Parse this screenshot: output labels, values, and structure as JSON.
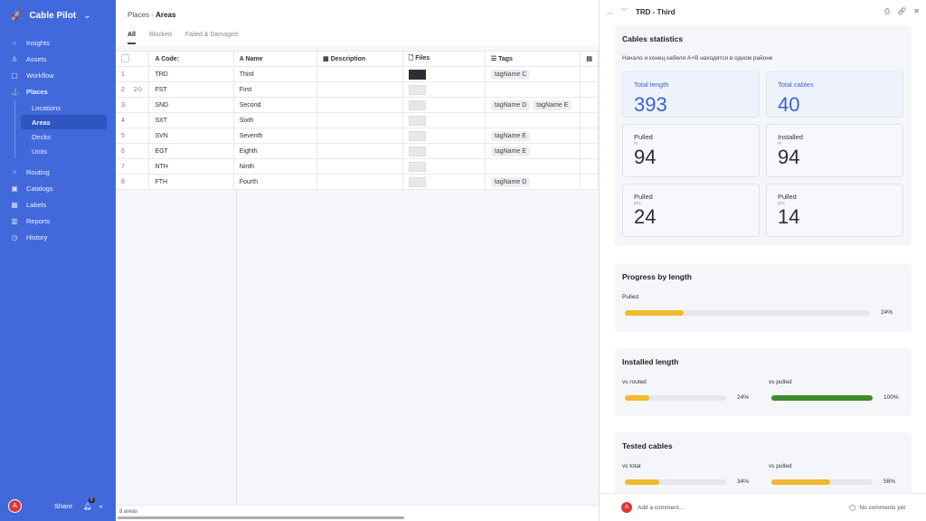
{
  "app": {
    "name": "Cable Pilot"
  },
  "sidebar": {
    "items": [
      {
        "label": "Insights",
        "icon": "lightbulb-icon"
      },
      {
        "label": "Assets",
        "icon": "assets-icon"
      },
      {
        "label": "Workflow",
        "icon": "workflow-icon"
      },
      {
        "label": "Places",
        "icon": "anchor-icon"
      },
      {
        "label": "Routing",
        "icon": "routing-icon"
      },
      {
        "label": "Catalogs",
        "icon": "catalog-icon"
      },
      {
        "label": "Labels",
        "icon": "labels-icon"
      },
      {
        "label": "Reports",
        "icon": "reports-icon"
      },
      {
        "label": "History",
        "icon": "history-icon"
      }
    ],
    "sub": [
      "Locations",
      "Areas",
      "Decks",
      "Units"
    ],
    "avatar": "A",
    "share": "Share",
    "notif_count": "6"
  },
  "breadcrumb": {
    "parent": "Places",
    "current": "Areas"
  },
  "tabs": [
    "All",
    "Blocked",
    "Failed & Damaged"
  ],
  "table": {
    "headers": [
      "Code:",
      "Name",
      "Description",
      "Files",
      "Tags"
    ],
    "rows": [
      {
        "n": "1",
        "badge": "",
        "code": "TRD",
        "name": "Third",
        "tags": [
          "tagName C"
        ],
        "file": "dark"
      },
      {
        "n": "2",
        "badge": "2",
        "code": "FST",
        "name": "First",
        "tags": [],
        "file": "light"
      },
      {
        "n": "3",
        "badge": "",
        "code": "SND",
        "name": "Second",
        "tags": [
          "tagName D",
          "tagName E"
        ],
        "file": "light"
      },
      {
        "n": "4",
        "badge": "",
        "code": "SXT",
        "name": "Sixth",
        "tags": [],
        "file": "light"
      },
      {
        "n": "5",
        "badge": "",
        "code": "SVN",
        "name": "Seventh",
        "tags": [
          "tagName E"
        ],
        "file": "light"
      },
      {
        "n": "6",
        "badge": "",
        "code": "EGT",
        "name": "Eighth",
        "tags": [
          "tagName E"
        ],
        "file": "light"
      },
      {
        "n": "7",
        "badge": "",
        "code": "NTH",
        "name": "Ninth",
        "tags": [],
        "file": "light"
      },
      {
        "n": "8",
        "badge": "",
        "code": "FTH",
        "name": "Fourth",
        "tags": [
          "tagName D"
        ],
        "file": "light"
      }
    ],
    "footer": "8 areas"
  },
  "panel": {
    "title": "TRD - Third",
    "stats": {
      "title": "Cables statistics",
      "note": "Начало и конец кабеля A+B находятся в одном районе",
      "cards": [
        {
          "label": "Total length",
          "unit": "",
          "value": "393"
        },
        {
          "label": "Total cables",
          "unit": "",
          "value": "40"
        },
        {
          "label": "Pulled",
          "unit": "m",
          "value": "94"
        },
        {
          "label": "Installed",
          "unit": "m",
          "value": "94"
        },
        {
          "label": "Pulled",
          "unit": "pcs",
          "value": "24"
        },
        {
          "label": "Pulled",
          "unit": "pcs",
          "value": "14"
        }
      ]
    },
    "progress": {
      "title": "Progress by length",
      "label": "Pulled",
      "pct": "24%",
      "value": 24,
      "color": "#f0b92e"
    },
    "installed": {
      "title": "Installed length",
      "bars": [
        {
          "label": "vs routed",
          "pct": "24%",
          "value": 24,
          "color": "#f0b92e"
        },
        {
          "label": "vs pulled",
          "pct": "100%",
          "value": 100,
          "color": "#3f8a2c"
        }
      ]
    },
    "tested": {
      "title": "Tested cables",
      "bars": [
        {
          "label": "vs total",
          "pct": "34%",
          "value": 34,
          "color": "#f0b92e"
        },
        {
          "label": "vs pulled",
          "pct": "58%",
          "value": 58,
          "color": "#f0b92e"
        }
      ]
    },
    "comment_placeholder": "Add a comment...",
    "comments_status": "No comments yet"
  }
}
